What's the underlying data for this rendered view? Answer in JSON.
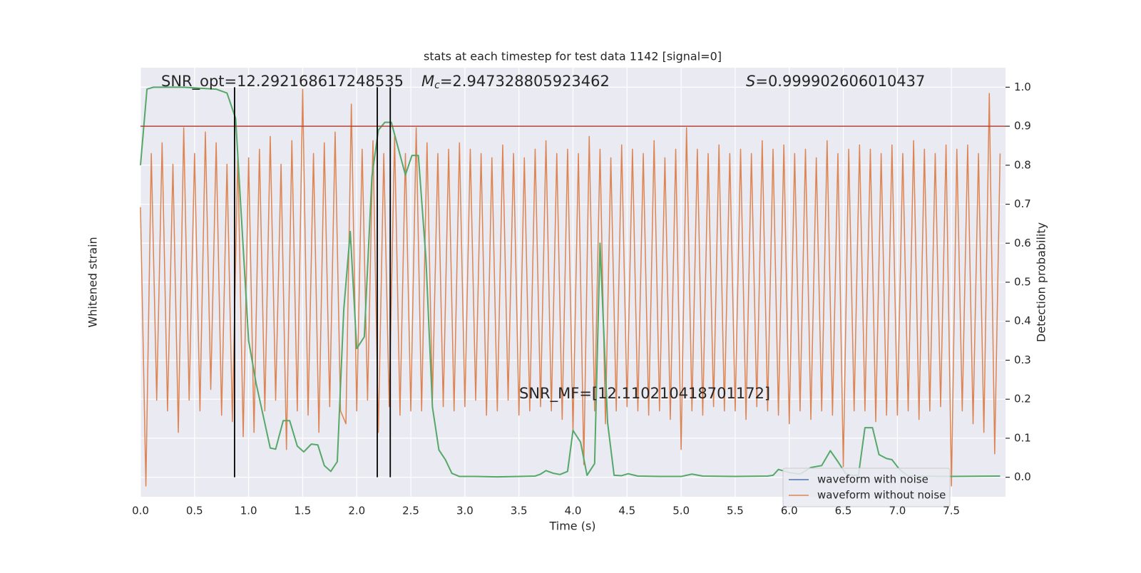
{
  "chart_data": {
    "type": "line",
    "title": "stats at each timestep for test data 1142 [signal=0]",
    "xlabel": "Time (s)",
    "ylabel": "Whitened strain",
    "y2label": "Detection probability",
    "xlim": [
      0,
      8
    ],
    "xticks": [
      {
        "value": 0,
        "label": "0.0"
      },
      {
        "value": 0.5,
        "label": "0.5"
      },
      {
        "value": 1,
        "label": "1.0"
      },
      {
        "value": 1.5,
        "label": "1.5"
      },
      {
        "value": 2,
        "label": "2.0"
      },
      {
        "value": 2.5,
        "label": "2.5"
      },
      {
        "value": 3,
        "label": "3.0"
      },
      {
        "value": 3.5,
        "label": "3.5"
      },
      {
        "value": 4,
        "label": "4.0"
      },
      {
        "value": 4.5,
        "label": "4.5"
      },
      {
        "value": 5,
        "label": "5.0"
      },
      {
        "value": 5.5,
        "label": "5.5"
      },
      {
        "value": 6,
        "label": "6.0"
      },
      {
        "value": 6.5,
        "label": "6.5"
      },
      {
        "value": 7,
        "label": "7.0"
      },
      {
        "value": 7.5,
        "label": "7.5"
      }
    ],
    "ylim": [
      -1,
      1
    ],
    "y2lim": [
      -0.05,
      1.05
    ],
    "y2ticks": [
      {
        "value": 0,
        "label": "0.0"
      },
      {
        "value": 0.1,
        "label": "0.1"
      },
      {
        "value": 0.2,
        "label": "0.2"
      },
      {
        "value": 0.3,
        "label": "0.3"
      },
      {
        "value": 0.4,
        "label": "0.4"
      },
      {
        "value": 0.5,
        "label": "0.5"
      },
      {
        "value": 0.6,
        "label": "0.6"
      },
      {
        "value": 0.7,
        "label": "0.7"
      },
      {
        "value": 0.8,
        "label": "0.8"
      },
      {
        "value": 0.9,
        "label": "0.9"
      },
      {
        "value": 1,
        "label": "1.0"
      }
    ],
    "grid": true,
    "legend": "lower right",
    "series": [
      {
        "name": "waveform with noise",
        "color": "#4c72b0"
      },
      {
        "name": "waveform without noise",
        "color": "#dd8452",
        "x": [
          0,
          0.05,
          0.1,
          0.15,
          0.2,
          0.25,
          0.3,
          0.35,
          0.4,
          0.45,
          0.5,
          0.55,
          0.6,
          0.65,
          0.7,
          0.75,
          0.8,
          0.85,
          0.9,
          0.95,
          1,
          1.05,
          1.1,
          1.15,
          1.2,
          1.25,
          1.3,
          1.35,
          1.4,
          1.45,
          1.5,
          1.55,
          1.6,
          1.65,
          1.7,
          1.75,
          1.8,
          1.85,
          1.9,
          1.95,
          2,
          2.05,
          2.1,
          2.15,
          2.2,
          2.25,
          2.3,
          2.35,
          2.4,
          2.45,
          2.5,
          2.55,
          2.6,
          2.65,
          2.7,
          2.75,
          2.8,
          2.85,
          2.9,
          2.95,
          3,
          3.05,
          3.1,
          3.15,
          3.2,
          3.25,
          3.3,
          3.35,
          3.4,
          3.45,
          3.5,
          3.55,
          3.6,
          3.65,
          3.7,
          3.75,
          3.8,
          3.85,
          3.9,
          3.95,
          4,
          4.05,
          4.1,
          4.15,
          4.2,
          4.25,
          4.3,
          4.35,
          4.4,
          4.45,
          4.5,
          4.55,
          4.6,
          4.65,
          4.7,
          4.75,
          4.8,
          4.85,
          4.9,
          4.95,
          5,
          5.05,
          5.1,
          5.15,
          5.2,
          5.25,
          5.3,
          5.35,
          5.4,
          5.45,
          5.5,
          5.55,
          5.6,
          5.65,
          5.7,
          5.75,
          5.8,
          5.85,
          5.9,
          5.95,
          6,
          6.05,
          6.1,
          6.15,
          6.2,
          6.25,
          6.3,
          6.35,
          6.4,
          6.45,
          6.5,
          6.55,
          6.6,
          6.65,
          6.7,
          6.75,
          6.8,
          6.85,
          6.9,
          6.95,
          7,
          7.05,
          7.1,
          7.15,
          7.2,
          7.25,
          7.3,
          7.35,
          7.4,
          7.45,
          7.5,
          7.55,
          7.6,
          7.65,
          7.7,
          7.75,
          7.8,
          7.85,
          7.9,
          7.95
        ],
        "values": [
          0.35,
          -0.95,
          0.6,
          -0.55,
          0.65,
          -0.6,
          0.55,
          -0.7,
          0.72,
          -0.55,
          0.6,
          -0.6,
          0.7,
          -0.5,
          0.65,
          -0.62,
          0.55,
          -0.65,
          0.6,
          -0.72,
          0.58,
          -0.7,
          0.62,
          -0.6,
          0.68,
          -0.55,
          0.55,
          -0.78,
          0.66,
          -0.6,
          0.9,
          -0.62,
          0.6,
          -0.7,
          0.65,
          -0.58,
          0.7,
          -0.6,
          -0.66,
          0.83,
          -0.6,
          0.62,
          -0.55,
          0.66,
          -0.7,
          0.6,
          -0.58,
          0.68,
          -0.62,
          0.6,
          -0.6,
          0.72,
          -0.6,
          0.65,
          -0.55,
          0.6,
          -0.58,
          0.62,
          -0.6,
          0.65,
          -0.58,
          0.62,
          -0.55,
          0.6,
          -0.62,
          0.58,
          -0.6,
          0.64,
          -0.55,
          0.6,
          -0.62,
          0.58,
          -0.6,
          0.62,
          -0.58,
          0.66,
          -0.6,
          0.6,
          -0.64,
          0.62,
          -0.7,
          0.6,
          -0.85,
          0.68,
          -0.6,
          0.62,
          -0.66,
          0.58,
          -0.6,
          0.64,
          -0.58,
          0.62,
          -0.6,
          0.6,
          -0.62,
          0.66,
          -0.6,
          0.58,
          -0.64,
          0.62,
          -0.78,
          0.72,
          -0.6,
          0.62,
          -0.62,
          0.6,
          -0.58,
          0.64,
          -0.6,
          0.6,
          -0.6,
          0.62,
          -0.64,
          0.6,
          -0.58,
          0.66,
          -0.6,
          0.62,
          -0.62,
          0.64,
          -0.66,
          0.6,
          -0.6,
          0.62,
          -0.64,
          0.58,
          -0.6,
          0.66,
          -0.62,
          0.6,
          -0.86,
          0.62,
          -0.6,
          0.64,
          -0.6,
          0.62,
          -0.65,
          0.6,
          -0.62,
          0.64,
          -0.62,
          0.6,
          -0.6,
          0.66,
          -0.64,
          0.62,
          -0.6,
          0.6,
          -0.58,
          0.64,
          -0.95,
          0.62,
          -0.6,
          0.64,
          -0.66,
          0.6,
          -0.7,
          0.88,
          -0.8,
          0.6
        ]
      },
      {
        "color": "#55a868",
        "axis": "y2",
        "x": [
          0,
          0.06,
          0.12,
          0.4,
          0.7,
          0.8,
          0.88,
          1.0,
          1.07,
          1.2,
          1.25,
          1.32,
          1.38,
          1.45,
          1.51,
          1.58,
          1.64,
          1.7,
          1.76,
          1.82,
          1.88,
          1.94,
          2.0,
          2.07,
          2.14,
          2.2,
          2.26,
          2.32,
          2.45,
          2.51,
          2.57,
          2.64,
          2.7,
          2.76,
          2.82,
          2.88,
          2.95,
          3.1,
          3.3,
          3.5,
          3.65,
          3.7,
          3.75,
          3.82,
          3.88,
          3.95,
          4.0,
          4.07,
          4.13,
          4.2,
          4.25,
          4.32,
          4.38,
          4.45,
          4.51,
          4.6,
          4.8,
          5.0,
          5.1,
          5.2,
          5.5,
          5.8,
          5.85,
          5.9,
          6.0,
          6.1,
          6.2,
          6.3,
          6.38,
          6.45,
          6.52,
          6.58,
          6.64,
          6.7,
          6.77,
          6.83,
          6.9,
          6.95,
          7.02,
          7.1,
          7.5,
          7.95
        ],
        "values": [
          0.8,
          0.995,
          1.0,
          1.0,
          0.995,
          0.985,
          0.92,
          0.35,
          0.24,
          0.075,
          0.072,
          0.145,
          0.145,
          0.08,
          0.065,
          0.085,
          0.083,
          0.03,
          0.015,
          0.04,
          0.43,
          0.63,
          0.33,
          0.36,
          0.77,
          0.89,
          0.91,
          0.91,
          0.775,
          0.825,
          0.825,
          0.56,
          0.18,
          0.07,
          0.045,
          0.01,
          0.002,
          0.002,
          0.001,
          0.002,
          0.003,
          0.008,
          0.017,
          0.01,
          0.007,
          0.015,
          0.12,
          0.09,
          0.005,
          0.035,
          0.6,
          0.14,
          0.005,
          0.004,
          0.009,
          0.003,
          0.002,
          0.002,
          0.008,
          0.003,
          0.002,
          0.003,
          0.005,
          0.02,
          0.012,
          0.008,
          0.025,
          0.03,
          0.068,
          0.04,
          0.01,
          0.005,
          0.005,
          0.127,
          0.127,
          0.058,
          0.048,
          0.045,
          0.02,
          0.003,
          0.002,
          0.003
        ]
      }
    ],
    "hline": {
      "y": 0.9,
      "color": "#b5433a",
      "axis": "y2"
    },
    "vlines": {
      "x": [
        0.87,
        2.19,
        2.31
      ],
      "ymin": 0,
      "ymax": 1,
      "color": "#000000",
      "axis": "y2"
    },
    "annotations": {
      "snr_opt": "SNR_opt=12.292168617248535",
      "mc": {
        "symbol": "M",
        "subscript": "c",
        "text": "=2.947328805923462"
      },
      "s": {
        "symbol": "S",
        "text": "=0.999902606010437"
      },
      "snr_mf": "SNR_MF=[12.110210418701172]"
    }
  }
}
